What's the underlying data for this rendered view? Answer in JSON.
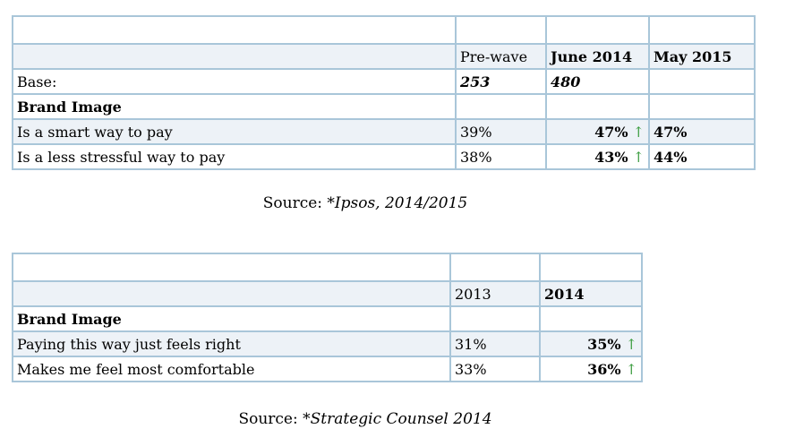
{
  "colors": {
    "table_border": "#a9c6d9",
    "zebra_row_fill": "#edf2f7",
    "text": "#000000",
    "increase_arrow_green": "#3f9e43",
    "page_background": "#ffffff"
  },
  "icons": {
    "increase_arrow": "↑"
  },
  "table1": {
    "columns": {
      "col1": "",
      "col2": "Pre-wave",
      "col3": "June 2014",
      "col4": "May 2015"
    },
    "base_row": {
      "label": "Base:",
      "pre_wave": "253",
      "june_2014": "480",
      "may_2015": ""
    },
    "section_label": "Brand Image",
    "rows": [
      {
        "label": "Is a smart way to pay",
        "pre_wave": "39%",
        "june_2014": "47%",
        "june_2014_trend": "↑",
        "may_2015": "47%"
      },
      {
        "label": "Is a less stressful way to pay",
        "pre_wave": "38%",
        "june_2014": "43%",
        "june_2014_trend": "↑",
        "may_2015": "44%"
      }
    ],
    "source_prefix": "Source: ",
    "source_citation": "*Ipsos, 2014/2015"
  },
  "table2": {
    "columns": {
      "col1": "",
      "col2": "2013",
      "col3": "2014"
    },
    "section_label": "Brand Image",
    "rows": [
      {
        "label": "Paying this way just feels right",
        "y2013": "31%",
        "y2014": "35%",
        "y2014_trend": "↑"
      },
      {
        "label": "Makes me feel most comfortable",
        "y2013": "33%",
        "y2014": "36%",
        "y2014_trend": "↑"
      }
    ],
    "source_prefix": "Source: ",
    "source_citation": "*Strategic Counsel 2014"
  },
  "chart_data": [
    {
      "type": "table",
      "title": "Brand Image (Ipsos)",
      "columns": [
        "",
        "Pre-wave",
        "June 2014",
        "May 2015"
      ],
      "base": {
        "Pre-wave": 253,
        "June 2014": 480
      },
      "rows": [
        {
          "label": "Is a smart way to pay",
          "Pre-wave": 39,
          "June 2014": 47,
          "June 2014 trend": "up",
          "May 2015": 47
        },
        {
          "label": "Is a less stressful way to pay",
          "Pre-wave": 38,
          "June 2014": 43,
          "June 2014 trend": "up",
          "May 2015": 44
        }
      ],
      "units": "percent",
      "source": "*Ipsos, 2014/2015"
    },
    {
      "type": "table",
      "title": "Brand Image (Strategic Counsel)",
      "columns": [
        "",
        "2013",
        "2014"
      ],
      "rows": [
        {
          "label": "Paying this way just feels right",
          "2013": 31,
          "2014": 35,
          "2014 trend": "up"
        },
        {
          "label": "Makes me feel most comfortable",
          "2013": 33,
          "2014": 36,
          "2014 trend": "up"
        }
      ],
      "units": "percent",
      "source": "*Strategic Counsel 2014"
    }
  ]
}
